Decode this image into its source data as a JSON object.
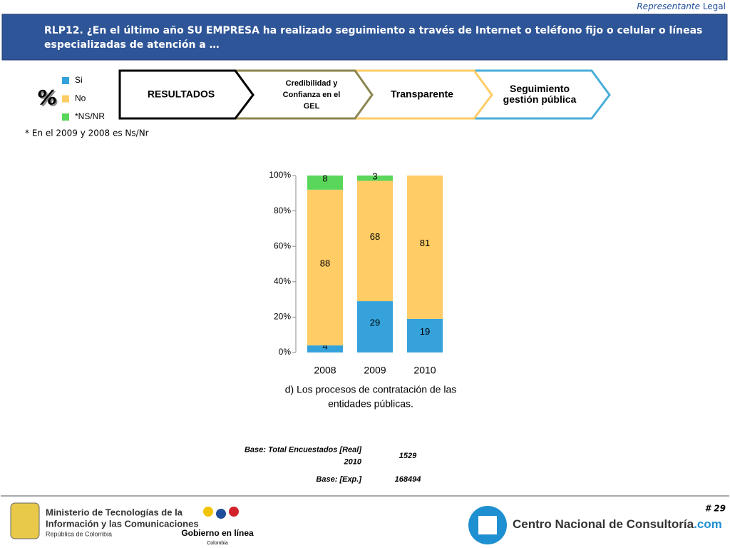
{
  "header": {
    "role_italic": "Representante",
    "role_plain": "Legal",
    "question": [
      "RLP12. ¿En el último año SU EMPRESA ha realizado seguimiento a través de Internet o teléfono fijo o celular o líneas",
      "especializadas de atención a …"
    ]
  },
  "percent_sign": "%",
  "note": "* En el 2009 y 2008 es Ns/Nr",
  "chevrons": [
    {
      "lines": [
        "RESULTADOS"
      ]
    },
    {
      "lines": [
        "Credibilidad y",
        "Confianza en el",
        "GEL"
      ]
    },
    {
      "lines": [
        "Transparente"
      ]
    },
    {
      "lines": [
        "Seguimiento",
        "gestión pública"
      ]
    }
  ],
  "chart_data": {
    "type": "stacked_bar",
    "title": [
      "d) Los procesos de contratación de las",
      "entidades públicas."
    ],
    "categories": [
      "2008",
      "2009",
      "2010"
    ],
    "series": [
      {
        "name": "Si",
        "color": "#35a2dc",
        "values": [
          4,
          29,
          19
        ]
      },
      {
        "name": "No",
        "color": "#ffcc66",
        "values": [
          88,
          68,
          81
        ]
      },
      {
        "name": "*NS/NR",
        "color": "#5ad65a",
        "values": [
          8,
          3,
          null
        ]
      }
    ],
    "ylim": [
      0,
      100
    ],
    "yticks": [
      {
        "value": 0,
        "label": "0%"
      },
      {
        "value": 20,
        "label": "20%"
      },
      {
        "value": 40,
        "label": "40%"
      },
      {
        "value": 60,
        "label": "60%"
      },
      {
        "value": 80,
        "label": "80%"
      },
      {
        "value": 100,
        "label": "100%"
      }
    ]
  },
  "base": {
    "rows": [
      [
        [
          "Base: Total Encuestados [Real]",
          "2010"
        ],
        "1529"
      ],
      [
        [
          "Base: [Exp.]"
        ],
        "168494"
      ]
    ]
  },
  "footer": {
    "page": "# 29",
    "ministry": [
      "Ministerio de Tecnologías de la",
      "Información y las Comunicaciones"
    ],
    "republic": "República de Colombia",
    "gel": "Gobierno en línea",
    "gel_country": "Colombia",
    "cnc": "Centro Nacional de Consultoría",
    "cnc_suffix": ".com"
  }
}
